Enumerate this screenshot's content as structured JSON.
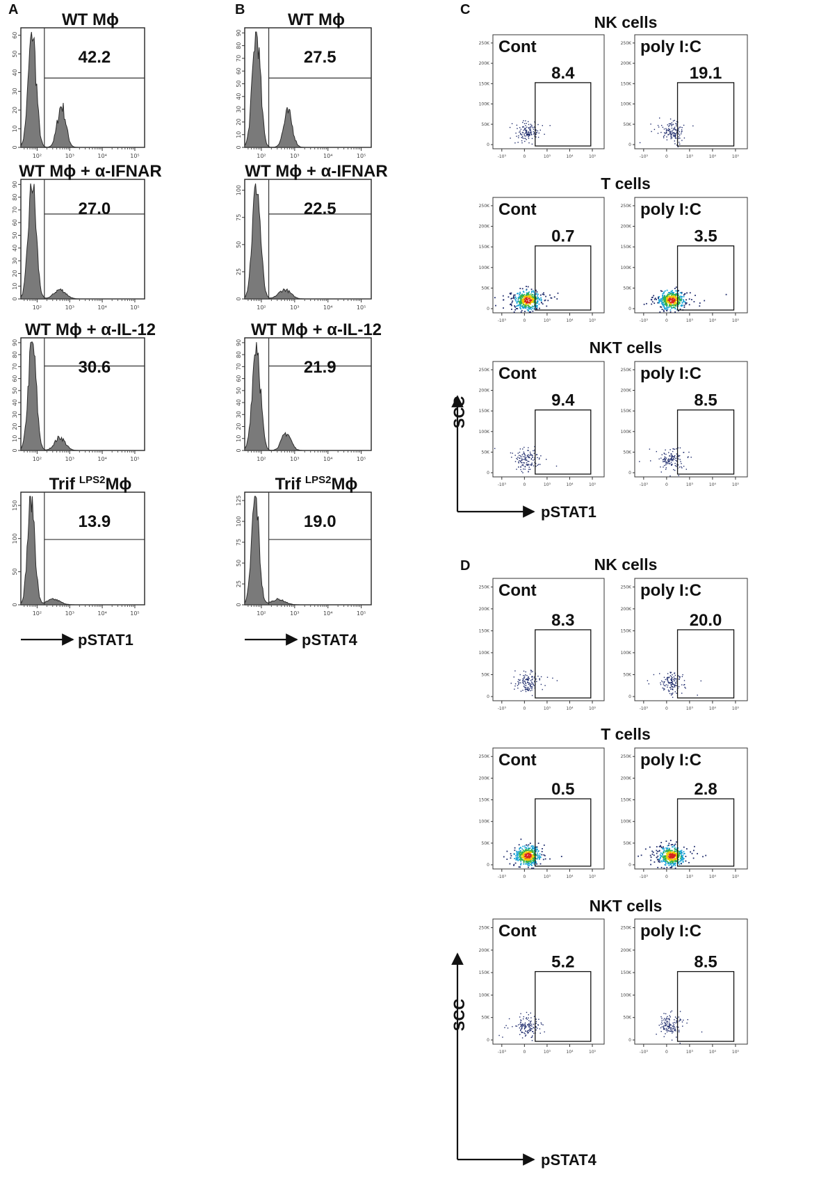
{
  "figure": {
    "panel_letters": [
      "A",
      "B",
      "C",
      "D"
    ],
    "axis_labels": {
      "A_x": "pSTAT1",
      "B_x": "pSTAT4",
      "C_x": "pSTAT1",
      "C_y": "SCC",
      "D_x": "pSTAT4",
      "D_y": "SCC"
    }
  },
  "chart_data": [
    {
      "panel": "A",
      "type": "histogram",
      "xlabel": "pSTAT1",
      "x_scale": "log",
      "x_ticks": [
        "10²",
        "10³",
        "10⁴",
        "10⁵"
      ],
      "samples": [
        {
          "title": "WT Mϕ",
          "gate_percent": "42.2",
          "y_ticks": [
            "0",
            "10",
            "20",
            "30",
            "40",
            "50",
            "60"
          ],
          "peaks": [
            {
              "logx": 1.85,
              "h": 1.0,
              "w": 0.12
            },
            {
              "logx": 2.75,
              "h": 0.36,
              "w": 0.13
            }
          ]
        },
        {
          "title": "WT Mϕ + α-IFNAR",
          "gate_percent": "27.0",
          "y_ticks": [
            "0",
            "10",
            "20",
            "30",
            "40",
            "50",
            "60",
            "70",
            "80",
            "90"
          ],
          "peaks": [
            {
              "logx": 1.85,
              "h": 1.0,
              "w": 0.12
            },
            {
              "logx": 2.7,
              "h": 0.08,
              "w": 0.18
            }
          ]
        },
        {
          "title": "WT Mϕ + α-IL-12",
          "gate_percent": "30.6",
          "y_ticks": [
            "0",
            "10",
            "20",
            "30",
            "40",
            "50",
            "60",
            "70",
            "80",
            "90"
          ],
          "peaks": [
            {
              "logx": 1.85,
              "h": 1.0,
              "w": 0.12
            },
            {
              "logx": 2.7,
              "h": 0.12,
              "w": 0.16
            }
          ]
        },
        {
          "title_main": "Trif",
          "title_sup": "LPS2",
          "title_tail": "Mϕ",
          "gate_percent": "13.9",
          "y_ticks": [
            "0",
            "50",
            "100",
            "150"
          ],
          "peaks": [
            {
              "logx": 1.82,
              "h": 1.0,
              "w": 0.11
            },
            {
              "logx": 2.5,
              "h": 0.05,
              "w": 0.2
            }
          ]
        }
      ]
    },
    {
      "panel": "B",
      "type": "histogram",
      "xlabel": "pSTAT4",
      "x_scale": "log",
      "x_ticks": [
        "10²",
        "10³",
        "10⁴",
        "10⁵"
      ],
      "samples": [
        {
          "title": "WT Mϕ",
          "gate_percent": "27.5",
          "y_ticks": [
            "0",
            "10",
            "20",
            "30",
            "40",
            "50",
            "60",
            "70",
            "80",
            "90"
          ],
          "peaks": [
            {
              "logx": 1.85,
              "h": 1.0,
              "w": 0.12
            },
            {
              "logx": 2.8,
              "h": 0.3,
              "w": 0.13
            }
          ]
        },
        {
          "title": "WT Mϕ + α-IFNAR",
          "gate_percent": "22.5",
          "y_ticks": [
            "0",
            "25",
            "50",
            "75",
            "100"
          ],
          "peaks": [
            {
              "logx": 1.85,
              "h": 1.0,
              "w": 0.12
            },
            {
              "logx": 2.7,
              "h": 0.08,
              "w": 0.18
            }
          ]
        },
        {
          "title": "WT Mϕ + α-IL-12",
          "gate_percent": "21.9",
          "y_ticks": [
            "0",
            "10",
            "20",
            "30",
            "40",
            "50",
            "60",
            "70",
            "80",
            "90"
          ],
          "peaks": [
            {
              "logx": 1.85,
              "h": 1.0,
              "w": 0.12
            },
            {
              "logx": 2.75,
              "h": 0.16,
              "w": 0.14
            }
          ]
        },
        {
          "title_main": "Trif",
          "title_sup": "LPS2",
          "title_tail": "Mϕ",
          "gate_percent": "19.0",
          "y_ticks": [
            "0",
            "25",
            "50",
            "75",
            "100",
            "125"
          ],
          "peaks": [
            {
              "logx": 1.82,
              "h": 1.0,
              "w": 0.11
            },
            {
              "logx": 2.5,
              "h": 0.05,
              "w": 0.2
            }
          ]
        }
      ]
    },
    {
      "panel": "C",
      "type": "scatter",
      "xlabel": "pSTAT1",
      "ylabel": "SCC",
      "x_ticks": [
        "-10³",
        "0",
        "10³",
        "10⁴",
        "10⁵"
      ],
      "y_ticks": [
        "0",
        "50K",
        "100K",
        "150K",
        "200K",
        "250K"
      ],
      "conditions": [
        "Cont",
        "poly I:C"
      ],
      "populations": [
        {
          "name": "NK cells",
          "density": "sparse",
          "gates": [
            "8.4",
            "19.1"
          ]
        },
        {
          "name": "T cells",
          "density": "dense",
          "gates": [
            "0.7",
            "3.5"
          ]
        },
        {
          "name": "NKT cells",
          "density": "sparse",
          "gates": [
            "9.4",
            "8.5"
          ]
        }
      ]
    },
    {
      "panel": "D",
      "type": "scatter",
      "xlabel": "pSTAT4",
      "ylabel": "SCC",
      "x_ticks": [
        "-10³",
        "0",
        "10³",
        "10⁴",
        "10⁵"
      ],
      "y_ticks": [
        "0",
        "50K",
        "100K",
        "150K",
        "200K",
        "250K"
      ],
      "conditions": [
        "Cont",
        "poly I:C"
      ],
      "populations": [
        {
          "name": "NK cells",
          "density": "sparse",
          "gates": [
            "8.3",
            "20.0"
          ]
        },
        {
          "name": "T cells",
          "density": "dense",
          "gates": [
            "0.5",
            "2.8"
          ]
        },
        {
          "name": "NKT cells",
          "density": "sparse",
          "gates": [
            "5.2",
            "8.5"
          ]
        }
      ]
    }
  ]
}
